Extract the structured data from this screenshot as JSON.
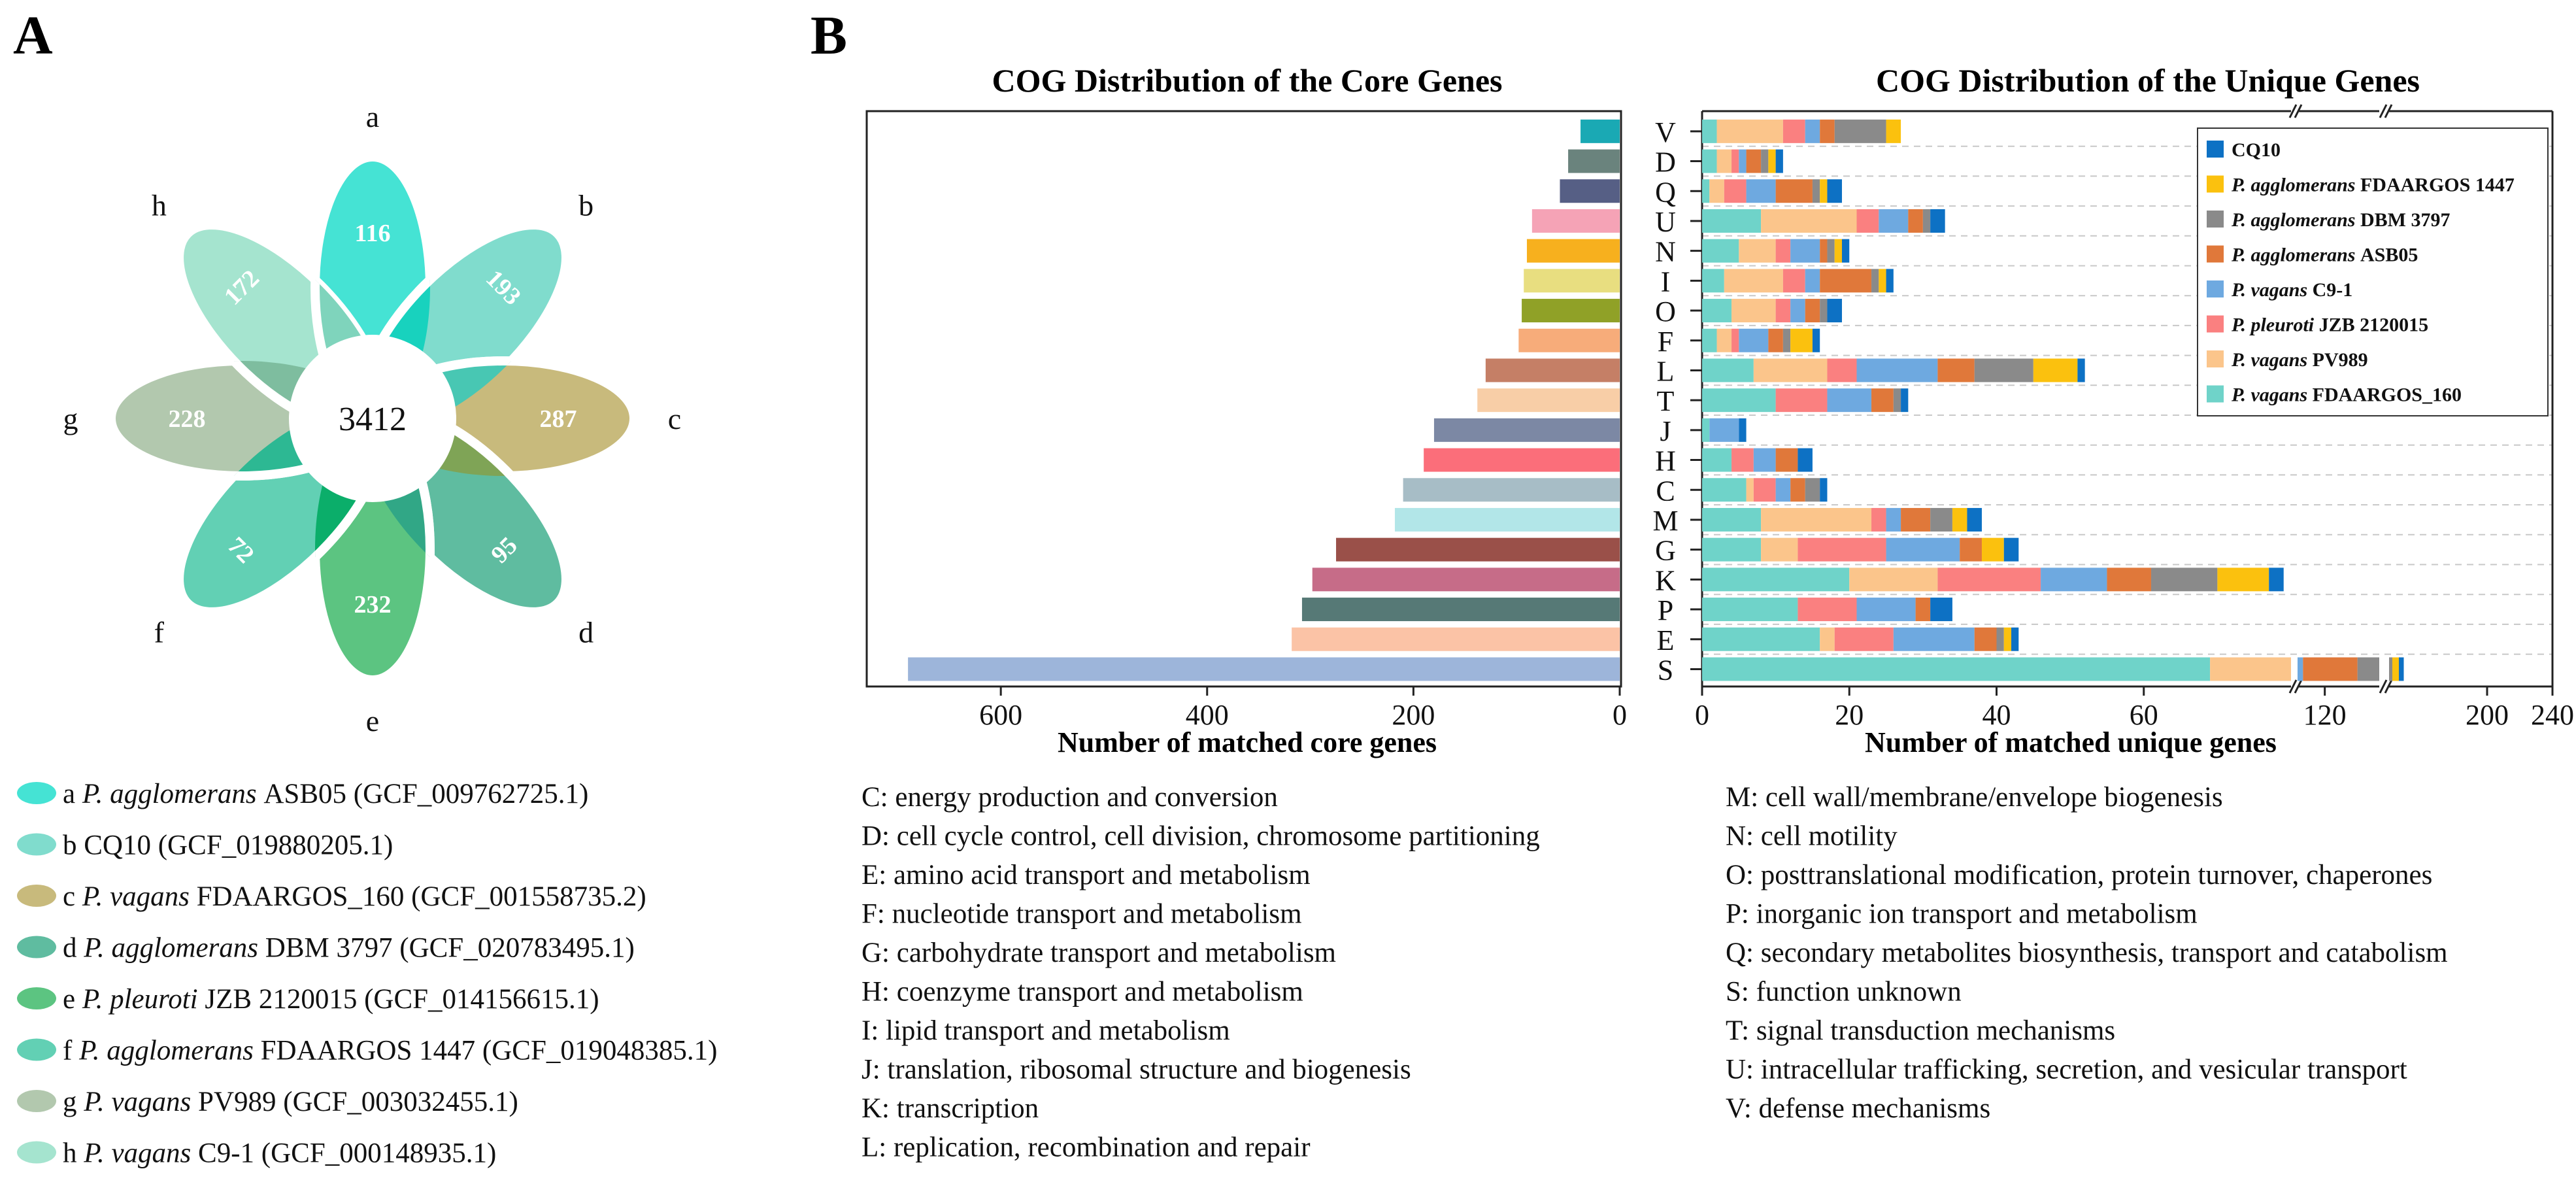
{
  "panel_labels": {
    "a": "A",
    "b": "B"
  },
  "venn": {
    "center_value": "3412",
    "petals": [
      {
        "letter": "a",
        "value": "116",
        "color": "#45e3d4"
      },
      {
        "letter": "b",
        "value": "193",
        "color": "#80dccd"
      },
      {
        "letter": "c",
        "value": "287",
        "color": "#c8ba7c"
      },
      {
        "letter": "d",
        "value": "95",
        "color": "#5fbca0"
      },
      {
        "letter": "e",
        "value": "232",
        "color": "#5cc481"
      },
      {
        "letter": "f",
        "value": "72",
        "color": "#62d0b4"
      },
      {
        "letter": "g",
        "value": "228",
        "color": "#b2c8ae"
      },
      {
        "letter": "h",
        "value": "172",
        "color": "#a5e4cf"
      }
    ],
    "overlap_colors": [
      "#18d2be",
      "#48c7b3",
      "#7fa456",
      "#31a786",
      "#0bae6a",
      "#2db893",
      "#7ebd9f",
      "#7fd4bc"
    ]
  },
  "venn_legend": [
    {
      "letter": "a",
      "genus": "P. agglomerans",
      "strain": "ASB05",
      "accession": "(GCF_009762725.1)",
      "color": "#45e3d4"
    },
    {
      "letter": "b",
      "genus": "",
      "strain": "CQ10",
      "accession": "(GCF_019880205.1)",
      "color": "#80dccd"
    },
    {
      "letter": "c",
      "genus": "P. vagans",
      "strain": "FDAARGOS_160",
      "accession": "(GCF_001558735.2)",
      "color": "#c8ba7c"
    },
    {
      "letter": "d",
      "genus": "P. agglomerans",
      "strain": "DBM 3797",
      "accession": "(GCF_020783495.1)",
      "color": "#5fbca0"
    },
    {
      "letter": "e",
      "genus": "P. pleuroti",
      "strain": "JZB 2120015",
      "accession": "(GCF_014156615.1)",
      "color": "#5cc481"
    },
    {
      "letter": "f",
      "genus": "P. agglomerans",
      "strain": "FDAARGOS 1447",
      "accession": "(GCF_019048385.1)",
      "color": "#62d0b4"
    },
    {
      "letter": "g",
      "genus": "P. vagans",
      "strain": "PV989",
      "accession": "(GCF_003032455.1)",
      "color": "#b2c8ae"
    },
    {
      "letter": "h",
      "genus": "P. vagans",
      "strain": "C9-1",
      "accession": "(GCF_000148935.1)",
      "color": "#a5e4cf"
    }
  ],
  "chart_data": [
    {
      "type": "bar",
      "orientation": "horizontal",
      "title": "COG Distribution of the Core Genes",
      "xlabel": "Number of matched core genes",
      "ylabel": "",
      "xlim": [
        0,
        730
      ],
      "x_reversed": true,
      "xticks": [
        "600",
        "400",
        "200",
        "0"
      ],
      "categories": [
        "V",
        "D",
        "Q",
        "U",
        "N",
        "I",
        "O",
        "F",
        "L",
        "T",
        "J",
        "H",
        "C",
        "M",
        "G",
        "K",
        "P",
        "E",
        "S"
      ],
      "values": [
        38,
        50,
        58,
        85,
        90,
        93,
        95,
        98,
        130,
        138,
        180,
        190,
        210,
        218,
        275,
        298,
        308,
        318,
        690
      ],
      "colors": [
        "#1aa9b4",
        "#6a837d",
        "#565f85",
        "#f5a3b6",
        "#f7b01e",
        "#e8de80",
        "#90a127",
        "#f7ac7a",
        "#c57f66",
        "#f8cea7",
        "#7c88a4",
        "#fb6e7a",
        "#a7bdc6",
        "#b2e6e8",
        "#9a5049",
        "#c66c88",
        "#567976",
        "#fbc3a6",
        "#9db5da"
      ]
    },
    {
      "type": "bar",
      "orientation": "horizontal",
      "stacked": true,
      "broken_x_axis": true,
      "title": "COG Distribution of the Unique Genes",
      "xlabel": "Number of matched unique genes",
      "xticks": [
        "0",
        "20",
        "40",
        "60",
        "120",
        "200",
        "240"
      ],
      "categories": [
        "V",
        "D",
        "Q",
        "U",
        "N",
        "I",
        "O",
        "F",
        "L",
        "T",
        "J",
        "H",
        "C",
        "M",
        "G",
        "K",
        "P",
        "E",
        "S"
      ],
      "series": [
        {
          "name": "P. vagans FDAARGOS_160",
          "genus": "P. vagans",
          "strain": "FDAARGOS_160",
          "color": "#6fd3c9",
          "values": [
            2,
            2,
            1,
            8,
            5,
            3,
            4,
            2,
            7,
            10,
            1,
            4,
            6,
            8,
            8,
            20,
            13,
            16,
            69
          ]
        },
        {
          "name": "P. vagans PV989",
          "genus": "P. vagans",
          "strain": "PV989",
          "color": "#fbc58b",
          "values": [
            9,
            2,
            2,
            13,
            5,
            8,
            6,
            2,
            10,
            0,
            0,
            0,
            1,
            15,
            5,
            12,
            0,
            2,
            11
          ]
        },
        {
          "name": "P. pleuroti JZB 2120015",
          "genus": "P. pleuroti",
          "strain": "JZB 2120015",
          "color": "#fa8080",
          "values": [
            3,
            1,
            3,
            3,
            2,
            3,
            2,
            1,
            4,
            7,
            0,
            3,
            3,
            2,
            12,
            14,
            8,
            8,
            5
          ]
        },
        {
          "name": "P. vagans C9-1",
          "genus": "P. vagans",
          "strain": "C9-1",
          "color": "#6ea9e0",
          "values": [
            2,
            1,
            4,
            4,
            4,
            2,
            2,
            4,
            11,
            6,
            4,
            3,
            2,
            2,
            10,
            9,
            8,
            11,
            27
          ]
        },
        {
          "name": "P. agglomerans ASB05",
          "genus": "P. agglomerans",
          "strain": "ASB05",
          "color": "#e0783a",
          "values": [
            2,
            2,
            5,
            2,
            1,
            7,
            2,
            2,
            5,
            3,
            0,
            3,
            2,
            4,
            3,
            6,
            2,
            3,
            20
          ]
        },
        {
          "name": "P. agglomerans DBM 3797",
          "genus": "P. agglomerans",
          "strain": "DBM 3797",
          "color": "#8a8a8a",
          "values": [
            7,
            1,
            1,
            1,
            1,
            1,
            1,
            1,
            8,
            1,
            0,
            0,
            2,
            3,
            0,
            9,
            0,
            1,
            10
          ]
        },
        {
          "name": "P. agglomerans FDAARGOS 1447",
          "genus": "P. agglomerans",
          "strain": "FDAARGOS 1447",
          "color": "#fbc10e",
          "values": [
            2,
            1,
            1,
            0,
            1,
            1,
            0,
            3,
            6,
            0,
            0,
            0,
            0,
            2,
            3,
            7,
            0,
            1,
            4
          ]
        },
        {
          "name": "CQ10",
          "genus": "",
          "strain": "CQ10",
          "color": "#0d71c4",
          "values": [
            0,
            1,
            2,
            2,
            1,
            1,
            2,
            1,
            1,
            1,
            1,
            2,
            1,
            2,
            2,
            2,
            3,
            1,
            3
          ]
        }
      ],
      "legend_order": [
        "CQ10",
        "P. agglomerans FDAARGOS 1447",
        "P. agglomerans DBM 3797",
        "P. agglomerans ASB05",
        "P. vagans C9-1",
        "P. pleuroti JZB 2120015",
        "P. vagans PV989",
        "P. vagans FDAARGOS_160"
      ],
      "legend_position": "top-right"
    }
  ],
  "cog_definitions_left": [
    "C: energy production and conversion",
    "D: cell cycle control, cell division, chromosome partitioning",
    "E: amino acid transport and metabolism",
    "F: nucleotide transport and metabolism",
    "G: carbohydrate transport and metabolism",
    "H: coenzyme transport and metabolism",
    "I: lipid transport and metabolism",
    "J: translation, ribosomal structure and biogenesis",
    "K: transcription",
    "L: replication, recombination and repair"
  ],
  "cog_definitions_right": [
    "M: cell wall/membrane/envelope biogenesis",
    "N: cell motility",
    "O: posttranslational modification, protein turnover, chaperones",
    "P: inorganic ion transport and metabolism",
    "Q: secondary metabolites biosynthesis, transport and catabolism",
    "S: function unknown",
    "T: signal transduction mechanisms",
    "U: intracellular trafficking, secretion, and vesicular transport",
    "V: defense mechanisms"
  ]
}
